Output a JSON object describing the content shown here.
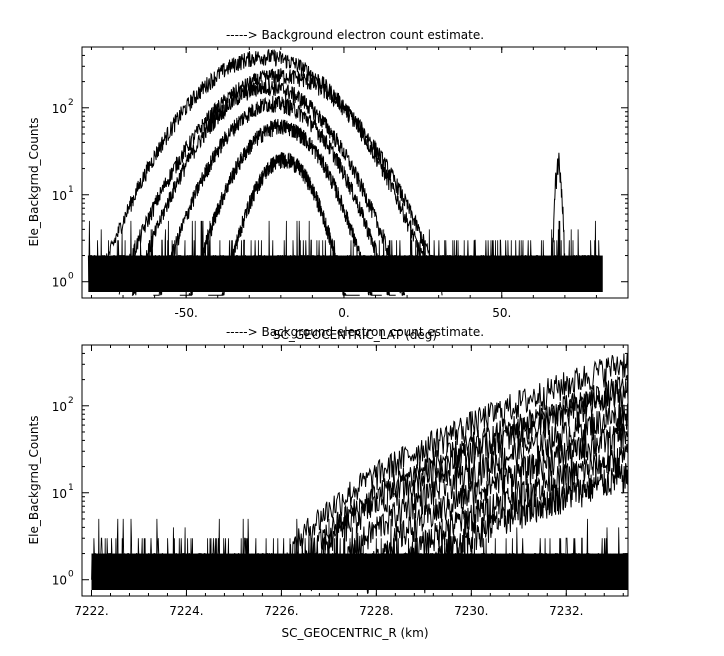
{
  "chart_data": [
    {
      "type": "line",
      "title": "-----> Background electron count estimate.",
      "xlabel": "SC_GEOCENTRIC_LAT (deg)",
      "ylabel": "Ele_Backgrnd_Counts",
      "y_scale": "log",
      "xlim": [
        -83,
        90
      ],
      "ylim": [
        0.65,
        500
      ],
      "x_ticks": [
        "-50.",
        "0.",
        "50."
      ],
      "x_tick_values": [
        -50,
        0,
        50
      ],
      "y_ticks": [
        {
          "value": 1,
          "base": "10",
          "exp": "0"
        },
        {
          "value": 10,
          "base": "10",
          "exp": "1"
        },
        {
          "value": 100,
          "base": "10",
          "exp": "2"
        }
      ],
      "grid": false,
      "noise_floor": {
        "x_range": [
          -81,
          82
        ],
        "y_range": [
          1,
          2
        ]
      },
      "spike": {
        "x": 68,
        "y": 27
      },
      "series": [
        {
          "peak_x": -25,
          "peak_y": 380,
          "half_width": 32
        },
        {
          "peak_x": -20,
          "peak_y": 230,
          "half_width": 32
        },
        {
          "peak_x": -24,
          "peak_y": 170,
          "half_width": 27
        },
        {
          "peak_x": -22,
          "peak_y": 110,
          "half_width": 24
        },
        {
          "peak_x": -20,
          "peak_y": 60,
          "half_width": 20
        },
        {
          "peak_x": -19,
          "peak_y": 25,
          "half_width": 15
        }
      ]
    },
    {
      "type": "line",
      "title": "-----> Background electron count estimate.",
      "xlabel": "SC_GEOCENTRIC_R (km)",
      "ylabel": "Ele_Backgrnd_Counts",
      "y_scale": "log",
      "xlim": [
        7221.8,
        7233.3
      ],
      "ylim": [
        0.65,
        500
      ],
      "x_ticks": [
        "7222.",
        "7224.",
        "7226.",
        "7228.",
        "7230.",
        "7232."
      ],
      "x_tick_values": [
        7222,
        7224,
        7226,
        7228,
        7230,
        7232
      ],
      "y_ticks": [
        {
          "value": 1,
          "base": "10",
          "exp": "0"
        },
        {
          "value": 10,
          "base": "10",
          "exp": "1"
        },
        {
          "value": 100,
          "base": "10",
          "exp": "2"
        }
      ],
      "grid": false,
      "noise_floor": {
        "x_range": [
          7222,
          7233.3
        ],
        "y_range": [
          1,
          2
        ]
      },
      "series": [
        {
          "start_x": 7226.0,
          "end_y": 370
        },
        {
          "start_x": 7226.4,
          "end_y": 190
        },
        {
          "start_x": 7226.6,
          "end_y": 160
        },
        {
          "start_x": 7227.2,
          "end_y": 95
        },
        {
          "start_x": 7227.8,
          "end_y": 55
        },
        {
          "start_x": 7228.4,
          "end_y": 30
        },
        {
          "start_x": 7229.0,
          "end_y": 18
        }
      ]
    }
  ]
}
